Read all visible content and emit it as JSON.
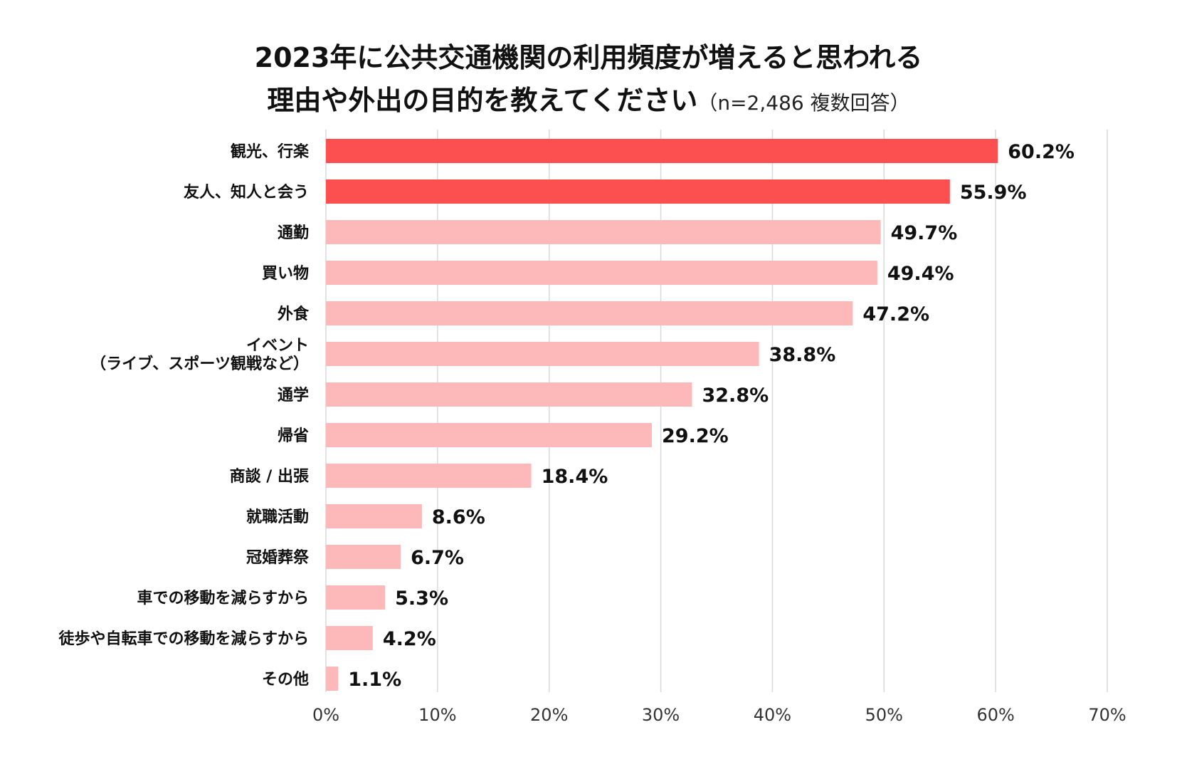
{
  "chart_data": {
    "type": "bar",
    "orientation": "horizontal",
    "title_line1": "2023年に公共交通機関の利用頻度が増えると思われる",
    "title_line2": "理由や外出の目的を教えてください",
    "title_note": "（n=2,486 複数回答）",
    "categories": [
      "観光、行楽",
      "友人、知人と会う",
      "通勤",
      "買い物",
      "外食",
      "イベント\n（ライブ、スポーツ観戦など）",
      "通学",
      "帰省",
      "商談 / 出張",
      "就職活動",
      "冠婚葬祭",
      "車での移動を減らすから",
      "徒歩や自転車での移動を減らすから",
      "その他"
    ],
    "values": [
      60.2,
      55.9,
      49.7,
      49.4,
      47.2,
      38.8,
      32.8,
      29.2,
      18.4,
      8.6,
      6.7,
      5.3,
      4.2,
      1.1
    ],
    "value_labels": [
      "60.2%",
      "55.9%",
      "49.7%",
      "49.4%",
      "47.2%",
      "38.8%",
      "32.8%",
      "29.2%",
      "18.4%",
      "8.6%",
      "6.7%",
      "5.3%",
      "4.2%",
      "1.1%"
    ],
    "highlight_count": 2,
    "xlim": [
      0,
      70
    ],
    "xticks": [
      0,
      10,
      20,
      30,
      40,
      50,
      60,
      70
    ],
    "xtick_labels": [
      "0%",
      "10%",
      "20%",
      "30%",
      "40%",
      "50%",
      "60%",
      "70%"
    ],
    "grid": true,
    "colors": {
      "highlight": "#fc4f4f",
      "normal": "#fdb9b9",
      "grid": "#d9d9d9",
      "text": "#111111"
    }
  }
}
